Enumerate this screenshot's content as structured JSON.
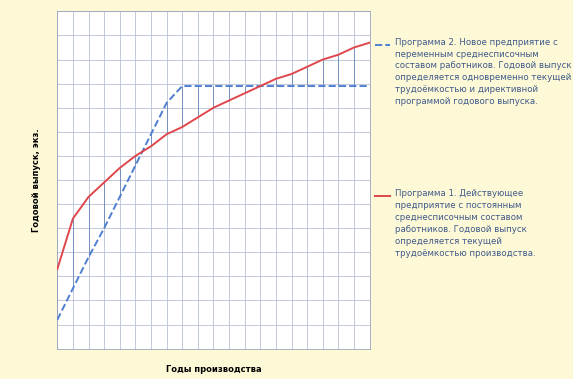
{
  "chart_data": {
    "type": "line",
    "x_label": "Годы производства",
    "y_label": "Годовой выпуск, экз.",
    "x": [
      0,
      1,
      2,
      3,
      4,
      5,
      6,
      7,
      8,
      9,
      10,
      11,
      12,
      13,
      14,
      15,
      16,
      17,
      18,
      19,
      20
    ],
    "series": [
      {
        "name": "Программа 2. Новое предприятие с переменным среднесписочным составом работников. Годовой выпуск определяется одновременно текущей трудоёмкостью и директивной программой годового выпуска.",
        "color": "#4f7fd0",
        "line_style": "dashed",
        "values": [
          1.2,
          2.5,
          3.8,
          5.0,
          6.3,
          7.6,
          8.9,
          10.2,
          10.9,
          10.9,
          10.9,
          10.9,
          10.9,
          10.9,
          10.9,
          10.9,
          10.9,
          10.9,
          10.9,
          10.9,
          10.9
        ]
      },
      {
        "name": "Программа 1. Действующее предприятие с постоянным среднесписочным составом работников. Годовой выпуск определяется текущей трудоёмкостью производства.",
        "color": "#e0474c",
        "line_style": "solid",
        "values": [
          3.3,
          5.4,
          6.3,
          6.9,
          7.5,
          8.0,
          8.4,
          8.9,
          9.2,
          9.6,
          10.0,
          10.3,
          10.6,
          10.9,
          11.2,
          11.4,
          11.7,
          12.0,
          12.2,
          12.5,
          12.7
        ]
      }
    ],
    "xlim": [
      0,
      20
    ],
    "xticks": [
      0,
      1,
      2,
      3,
      4,
      5,
      6,
      7,
      8,
      9,
      10,
      11,
      12,
      13,
      14,
      15,
      16,
      17,
      18,
      19,
      20
    ],
    "ylim": [
      0,
      14
    ],
    "yticks": [
      0,
      1,
      2,
      3,
      4,
      5,
      6,
      7,
      8,
      9,
      10,
      11,
      12,
      13,
      14
    ],
    "grid": true,
    "tick_labels": false,
    "legend": "right"
  }
}
